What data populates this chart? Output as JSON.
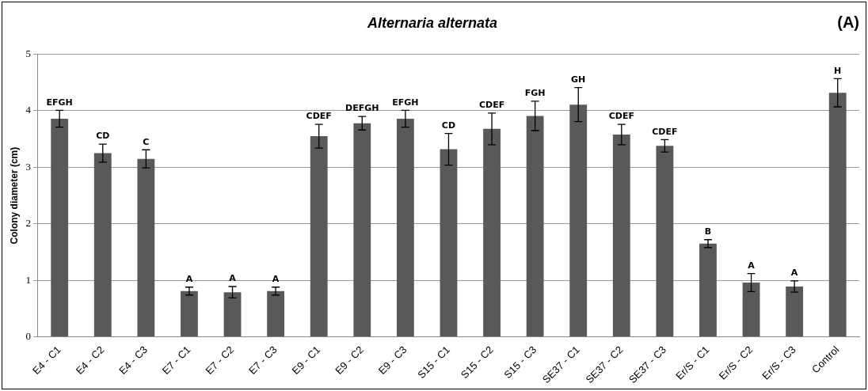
{
  "chart_data": {
    "type": "bar",
    "title": "Alternaria alternata",
    "ylabel": "Colony diameter (cm)",
    "categories": [
      "E4 - C1",
      "E4 - C2",
      "E4 - C3",
      "E7 - C1",
      "E7 - C2",
      "E7 - C3",
      "E9 - C1",
      "E9 - C2",
      "E9 - C3",
      "S15 - C1",
      "S15 - C2",
      "S15 - C3",
      "SE37 - C1",
      "SE37 - C2",
      "SE37 - C3",
      "Er/S - C1",
      "Er/S - C2",
      "Er/S - C3",
      "Control"
    ],
    "values": [
      3.86,
      3.25,
      3.15,
      0.81,
      0.79,
      0.81,
      3.55,
      3.78,
      3.86,
      3.32,
      3.68,
      3.91,
      4.11,
      3.58,
      3.38,
      1.65,
      0.96,
      0.89,
      4.32
    ],
    "errors": [
      0.15,
      0.16,
      0.16,
      0.07,
      0.1,
      0.07,
      0.21,
      0.12,
      0.15,
      0.28,
      0.28,
      0.26,
      0.3,
      0.18,
      0.11,
      0.07,
      0.16,
      0.1,
      0.25
    ],
    "color": "#595959",
    "ylim": [
      0,
      5
    ],
    "yticks": [
      0,
      1,
      2,
      3,
      4,
      5
    ],
    "grid": "y",
    "legend": false,
    "annotations": [
      "(A)",
      {
        "text": "EFGH",
        "x": "E4 - C1",
        "y": 4.01
      },
      {
        "text": "CD",
        "x": "E4 - C2",
        "y": 3.41
      },
      {
        "text": "C",
        "x": "E4 - C3",
        "y": 3.31
      },
      {
        "text": "A",
        "x": "E7 - C1",
        "y": 0.88
      },
      {
        "text": "A",
        "x": "E7 - C2",
        "y": 0.89
      },
      {
        "text": "A",
        "x": "E7 - C3",
        "y": 0.88
      },
      {
        "text": "CDEF",
        "x": "E9 - C1",
        "y": 3.76
      },
      {
        "text": "DEFGH",
        "x": "E9 - C2",
        "y": 3.9
      },
      {
        "text": "EFGH",
        "x": "E9 - C3",
        "y": 4.01
      },
      {
        "text": "CD",
        "x": "S15 - C1",
        "y": 3.6
      },
      {
        "text": "CDEF",
        "x": "S15 - C2",
        "y": 3.96
      },
      {
        "text": "FGH",
        "x": "S15 - C3",
        "y": 4.17
      },
      {
        "text": "GH",
        "x": "SE37 - C1",
        "y": 4.41
      },
      {
        "text": "CDEF",
        "x": "SE37 - C2",
        "y": 3.76
      },
      {
        "text": "CDEF",
        "x": "SE37 - C3",
        "y": 3.49
      },
      {
        "text": "B",
        "x": "Er/S - C1",
        "y": 1.72
      },
      {
        "text": "A",
        "x": "Er/S - C2",
        "y": 1.12
      },
      {
        "text": "A",
        "x": "Er/S - C3",
        "y": 0.99
      },
      {
        "text": "H",
        "x": "Control",
        "y": 4.57
      }
    ]
  }
}
